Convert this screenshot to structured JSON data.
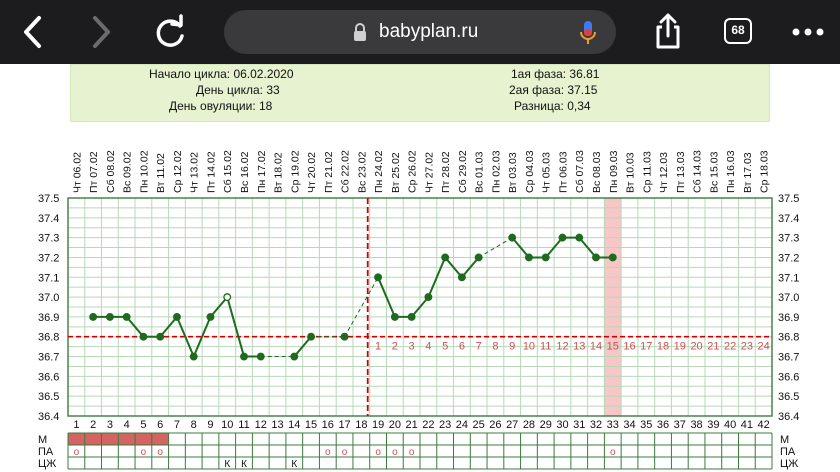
{
  "browser": {
    "url": "babyplan.ru",
    "tab_count": "68",
    "icons": [
      "back-icon",
      "forward-icon",
      "reload-icon",
      "lock-icon",
      "microphone-icon",
      "share-icon",
      "tabs-icon",
      "more-icon"
    ]
  },
  "cycle_info": {
    "start_label": "Начало цикла: 06.02.2020",
    "day_label": "День цикла: 33",
    "ovulation_label": "День овуляции: 18",
    "phase1_label": "1ая фаза: 36.81",
    "phase2_label": "2ая фаза: 37.15",
    "diff_label": "Разница: 0,34"
  },
  "colors": {
    "line": "#1e6b1e",
    "coverline": "#cc0000",
    "highlight": "#f7c6c6",
    "menstruation": "#d46363",
    "phase2_text": "#d05050",
    "grid_minor": "#b8d8b8",
    "grid_major": "#3c7a3c"
  },
  "chart_data": {
    "type": "line",
    "dates": [
      "Чт 06.02",
      "Пт 07.02",
      "Сб 08.02",
      "Вс 09.02",
      "Пн 10.02",
      "Вт 11.02",
      "Ср 12.02",
      "Чт 13.02",
      "Пт 14.02",
      "Сб 15.02",
      "Вс 16.02",
      "Пн 17.02",
      "Вт 18.02",
      "Ср 19.02",
      "Чт 20.02",
      "Пт 21.02",
      "Сб 22.02",
      "Вс 23.02",
      "Пн 24.02",
      "Вт 25.02",
      "Ср 26.02",
      "Чт 27.02",
      "Пт 28.02",
      "Сб 29.02",
      "Вс 01.03",
      "Пн 02.03",
      "Вт 03.03",
      "Ср 04.03",
      "Чт 05.03",
      "Пт 06.03",
      "Сб 07.03",
      "Вс 08.03",
      "Пн 09.03",
      "Вт 10.03",
      "Ср 11.03",
      "Чт 12.03",
      "Пт 13.03",
      "Сб 14.03",
      "Вс 15.03",
      "Пн 16.03",
      "Вт 17.03",
      "Ср 18.03"
    ],
    "days": [
      1,
      2,
      3,
      4,
      5,
      6,
      7,
      8,
      9,
      10,
      11,
      12,
      13,
      14,
      15,
      16,
      17,
      18,
      19,
      20,
      21,
      22,
      23,
      24,
      25,
      26,
      27,
      28,
      29,
      30,
      31,
      32,
      33,
      34,
      35,
      36,
      37,
      38,
      39,
      40,
      41,
      42
    ],
    "y_ticks": [
      "37.5",
      "37.4",
      "37.3",
      "37.2",
      "37.1",
      "37.0",
      "36.9",
      "36.8",
      "36.7",
      "36.6",
      "36.5",
      "36.4"
    ],
    "ylim": [
      36.4,
      37.5
    ],
    "temperatures": [
      null,
      36.9,
      36.9,
      36.9,
      36.8,
      36.8,
      36.9,
      36.7,
      36.9,
      37.0,
      36.7,
      36.7,
      null,
      36.7,
      36.8,
      null,
      36.8,
      null,
      37.1,
      36.9,
      36.9,
      37.0,
      37.2,
      37.1,
      37.2,
      null,
      37.3,
      37.2,
      37.2,
      37.3,
      37.3,
      37.2,
      37.2,
      null,
      null,
      null,
      null,
      null,
      null,
      null,
      null,
      null
    ],
    "open_markers": [
      10
    ],
    "coverline": 36.8,
    "ovulation_day": 18,
    "current_day": 33,
    "phase2_numbers": [
      "1",
      "2",
      "3",
      "4",
      "5",
      "6",
      "7",
      "8",
      "9",
      "10",
      "11",
      "12",
      "13",
      "14",
      "15",
      "16",
      "17",
      "18",
      "19",
      "20",
      "21",
      "22",
      "23",
      "24"
    ],
    "phase2_start_day": 19,
    "row_labels": [
      "М",
      "ПА",
      "ЦЖ"
    ],
    "menstruation_days": [
      1,
      2,
      3,
      4,
      5,
      6
    ],
    "pa_marker": "o",
    "pa_days": [
      1,
      5,
      6,
      16,
      17,
      19,
      20,
      21,
      33
    ],
    "cm_marker": "К",
    "cm_days": [
      10,
      11,
      14
    ]
  }
}
